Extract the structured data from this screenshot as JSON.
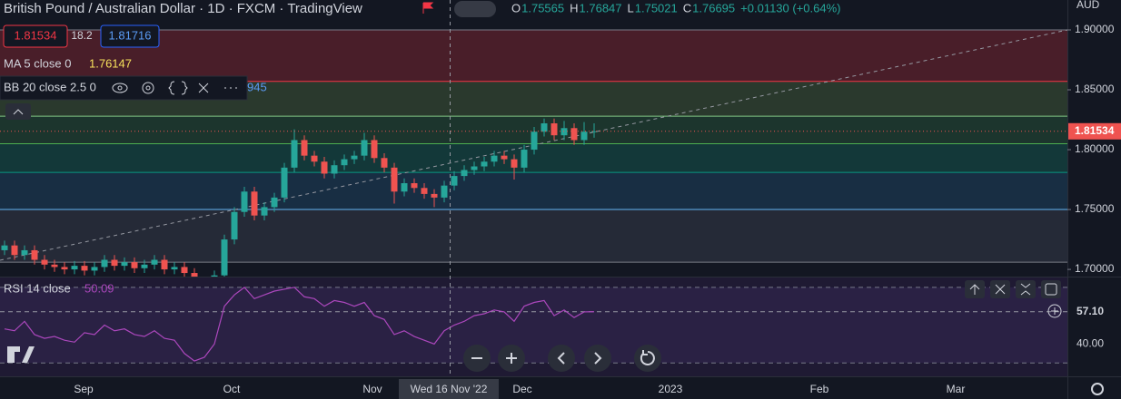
{
  "header": {
    "title": "British Pound / Australian Dollar · 1D · FXCM · TradingView",
    "ohlc": [
      {
        "label": "O",
        "value": "1.75565"
      },
      {
        "label": "H",
        "value": "1.76847"
      },
      {
        "label": "L",
        "value": "1.75021"
      },
      {
        "label": "C",
        "value": "1.76695"
      }
    ],
    "change": "+0.01130 (+0.64%)"
  },
  "quote": {
    "bid": "1.81534",
    "spread": "18.2",
    "ask": "1.81716"
  },
  "indicators": {
    "ma": {
      "name": "MA 5 close 0",
      "value": "1.76147"
    },
    "bb": {
      "name": "BB 20 close 2.5 0",
      "value": "945"
    },
    "rsi": {
      "name": "RSI 14 close",
      "value": "50.09"
    }
  },
  "currency": "AUD",
  "time_labels": [
    "Sep",
    "Oct",
    "Nov",
    "Wed 16 Nov '22",
    "Dec",
    "2023",
    "Feb",
    "Mar"
  ],
  "chart_data": {
    "type": "candlestick",
    "up_color": "#26a69a",
    "down_color": "#ef5350",
    "ylim": [
      1.694,
      1.925
    ],
    "yticks": [
      {
        "value": 1.9,
        "label": "1.90000"
      },
      {
        "value": 1.85,
        "label": "1.85000"
      },
      {
        "value": 1.8,
        "label": "1.80000"
      },
      {
        "value": 1.75,
        "label": "1.75000"
      },
      {
        "value": 1.7,
        "label": "1.70000"
      }
    ],
    "last_price": {
      "value": 1.81534,
      "label": "1.81534"
    },
    "fib_levels": [
      {
        "value": 1.9,
        "color": "#787b86",
        "fill": "rgba(140,40,50,0.45)"
      },
      {
        "value": 1.857,
        "color": "#f23645",
        "fill": "rgba(70,100,60,0.45)"
      },
      {
        "value": 1.828,
        "color": "#81c784",
        "fill": "rgba(40,90,60,0.45)"
      },
      {
        "value": 1.805,
        "color": "#4caf50",
        "fill": "rgba(20,90,80,0.5)"
      },
      {
        "value": 1.781,
        "color": "#089981",
        "fill": "rgba(30,70,100,0.5)"
      },
      {
        "value": 1.75,
        "color": "#64b5f6",
        "fill": "rgba(50,55,70,0.6)"
      },
      {
        "value": 1.706,
        "color": "#787b86"
      }
    ],
    "candles": [
      [
        1.716,
        1.724,
        1.712,
        1.72
      ],
      [
        1.72,
        1.724,
        1.708,
        1.712
      ],
      [
        1.712,
        1.72,
        1.708,
        1.716
      ],
      [
        1.716,
        1.72,
        1.704,
        1.708
      ],
      [
        1.708,
        1.712,
        1.7,
        1.704
      ],
      [
        1.704,
        1.708,
        1.698,
        1.702
      ],
      [
        1.702,
        1.706,
        1.696,
        1.7
      ],
      [
        1.7,
        1.707,
        1.696,
        1.703
      ],
      [
        1.703,
        1.707,
        1.695,
        1.699
      ],
      [
        1.699,
        1.706,
        1.695,
        1.702
      ],
      [
        1.702,
        1.712,
        1.698,
        1.708
      ],
      [
        1.708,
        1.712,
        1.699,
        1.703
      ],
      [
        1.703,
        1.71,
        1.699,
        1.706
      ],
      [
        1.706,
        1.71,
        1.697,
        1.701
      ],
      [
        1.701,
        1.708,
        1.697,
        1.704
      ],
      [
        1.704,
        1.712,
        1.7,
        1.708
      ],
      [
        1.708,
        1.712,
        1.696,
        1.7
      ],
      [
        1.7,
        1.706,
        1.696,
        1.702
      ],
      [
        1.702,
        1.706,
        1.693,
        1.697
      ],
      [
        1.697,
        1.701,
        1.686,
        1.69
      ],
      [
        1.69,
        1.694,
        1.684,
        1.688
      ],
      [
        1.688,
        1.699,
        1.684,
        1.695
      ],
      [
        1.695,
        1.729,
        1.691,
        1.725
      ],
      [
        1.725,
        1.752,
        1.721,
        1.748
      ],
      [
        1.748,
        1.769,
        1.744,
        1.765
      ],
      [
        1.765,
        1.769,
        1.741,
        1.745
      ],
      [
        1.745,
        1.756,
        1.741,
        1.752
      ],
      [
        1.752,
        1.764,
        1.748,
        1.76
      ],
      [
        1.76,
        1.789,
        1.756,
        1.785
      ],
      [
        1.785,
        1.817,
        1.781,
        1.808
      ],
      [
        1.808,
        1.812,
        1.791,
        1.795
      ],
      [
        1.795,
        1.799,
        1.786,
        1.79
      ],
      [
        1.79,
        1.794,
        1.776,
        1.78
      ],
      [
        1.78,
        1.791,
        1.776,
        1.787
      ],
      [
        1.787,
        1.796,
        1.783,
        1.792
      ],
      [
        1.792,
        1.799,
        1.788,
        1.795
      ],
      [
        1.795,
        1.814,
        1.791,
        1.808
      ],
      [
        1.808,
        1.812,
        1.789,
        1.793
      ],
      [
        1.793,
        1.797,
        1.781,
        1.785
      ],
      [
        1.785,
        1.789,
        1.755,
        1.765
      ],
      [
        1.765,
        1.776,
        1.761,
        1.772
      ],
      [
        1.772,
        1.776,
        1.764,
        1.768
      ],
      [
        1.768,
        1.772,
        1.759,
        1.763
      ],
      [
        1.763,
        1.767,
        1.752,
        1.76
      ],
      [
        1.76,
        1.774,
        1.756,
        1.77
      ],
      [
        1.77,
        1.782,
        1.766,
        1.778
      ],
      [
        1.778,
        1.787,
        1.774,
        1.783
      ],
      [
        1.783,
        1.79,
        1.779,
        1.786
      ],
      [
        1.786,
        1.794,
        1.782,
        1.79
      ],
      [
        1.79,
        1.799,
        1.786,
        1.795
      ],
      [
        1.795,
        1.799,
        1.788,
        1.792
      ],
      [
        1.792,
        1.796,
        1.775,
        1.785
      ],
      [
        1.785,
        1.804,
        1.781,
        1.8
      ],
      [
        1.8,
        1.819,
        1.796,
        1.815
      ],
      [
        1.815,
        1.826,
        1.811,
        1.822
      ],
      [
        1.822,
        1.826,
        1.808,
        1.812
      ],
      [
        1.812,
        1.824,
        1.808,
        1.818
      ],
      [
        1.818,
        1.822,
        1.804,
        1.808
      ],
      [
        1.808,
        1.823,
        1.804,
        1.815
      ],
      [
        1.815,
        1.822,
        1.81,
        1.81534
      ]
    ],
    "rsi": {
      "color": "#ab47bc",
      "ylim": [
        22.9,
        75.2
      ],
      "bands": [
        70,
        30
      ],
      "yticks": [
        {
          "value": 40,
          "label": "40.00"
        }
      ],
      "last": {
        "value": 57.1,
        "label": "57.10"
      },
      "values": [
        48,
        47,
        52,
        45,
        43,
        44,
        42,
        41,
        46,
        45,
        50,
        47,
        48,
        45,
        44,
        47,
        43,
        42,
        35,
        31,
        33,
        40,
        60,
        66,
        70,
        64,
        66,
        68,
        69,
        70,
        65,
        64,
        60,
        63,
        62,
        60,
        62,
        55,
        53,
        45,
        47,
        44,
        42,
        40,
        47,
        50,
        52,
        55,
        56,
        58,
        57,
        52,
        60,
        62,
        63,
        55,
        58,
        54,
        57,
        57.1
      ]
    }
  }
}
